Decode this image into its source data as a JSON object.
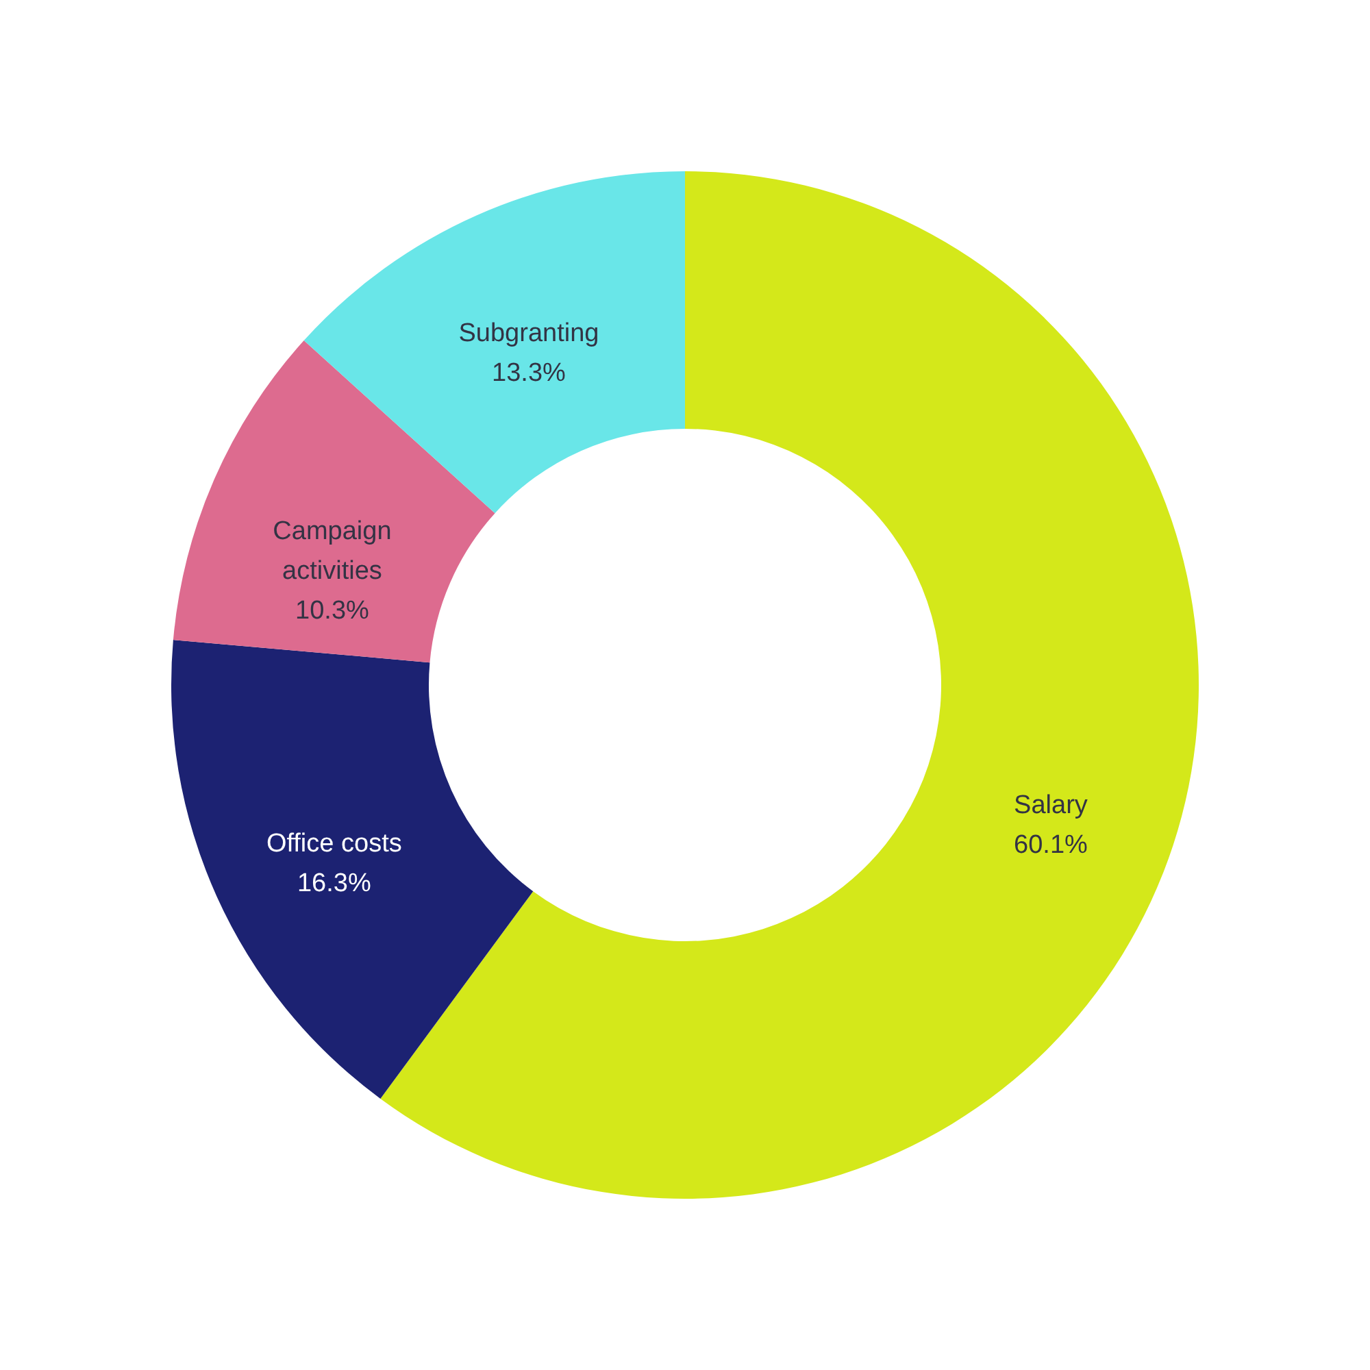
{
  "chart_data": {
    "type": "donut",
    "categories": [
      "Salary",
      "Office costs",
      "Campaign activities",
      "Subgranting"
    ],
    "values": [
      60.1,
      16.3,
      10.3,
      13.3
    ],
    "colors": [
      "#d4e81a",
      "#1c2272",
      "#dd6b8f",
      "#69e6e8"
    ],
    "value_labels": [
      "60.1%",
      "16.3%",
      "10.3%",
      "13.3%"
    ]
  }
}
